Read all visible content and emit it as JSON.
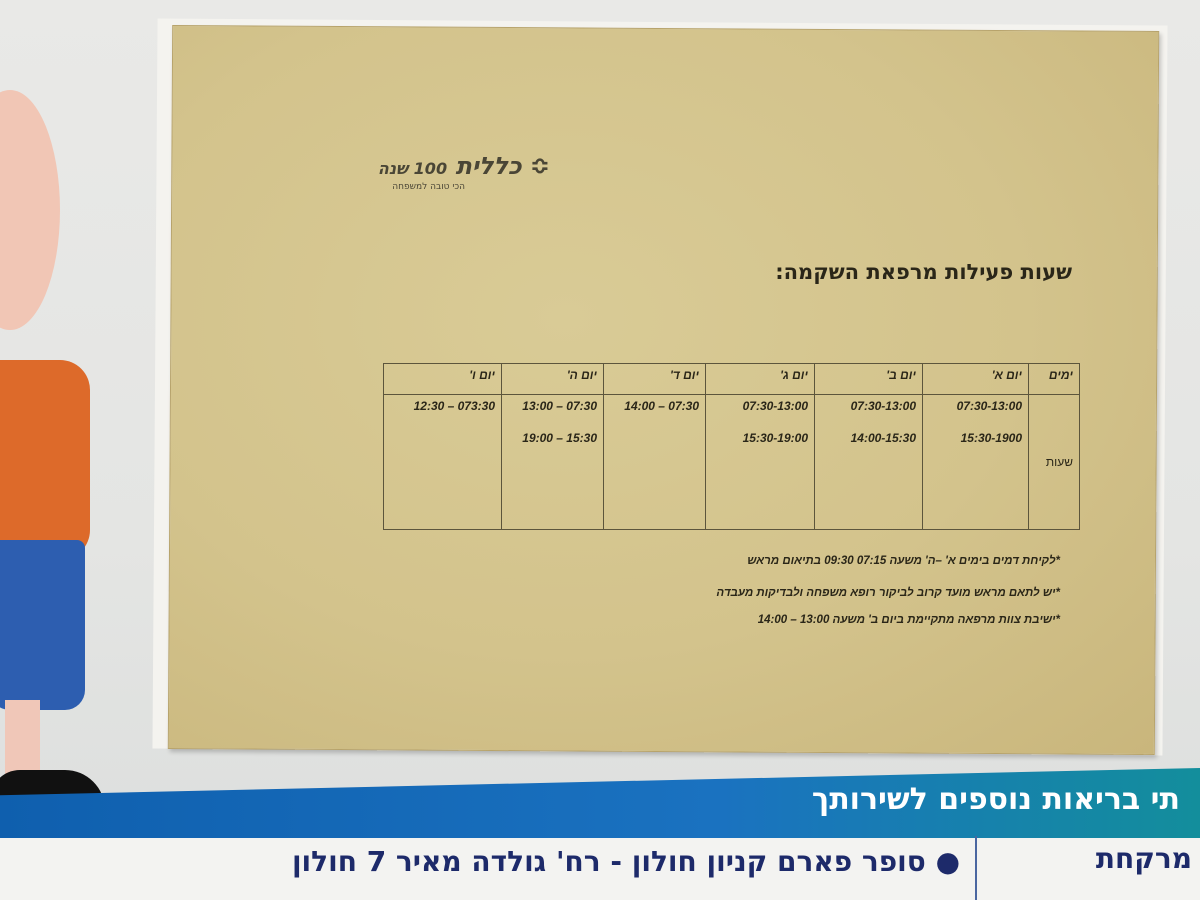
{
  "logo": {
    "brand": "כללית",
    "badge": "100 שנה",
    "tagline": "הכי טובה למשפחה"
  },
  "title": "שעות פעילות מרפאת השקמה:",
  "table": {
    "headers": [
      "ימים",
      "יום א'",
      "יום ב'",
      "יום ג'",
      "יום ד'",
      "יום ה'",
      "יום ו'"
    ],
    "row_label": "שעות",
    "hours": [
      [
        "07:30-13:00",
        "15:30-1900"
      ],
      [
        "07:30-13:00",
        "14:00-15:30"
      ],
      [
        "07:30-13:00",
        "15:30-19:00"
      ],
      [
        "14:00 – 07:30",
        ""
      ],
      [
        "13:00 – 07:30",
        "19:00 – 15:30"
      ],
      [
        "12:30 – 073:30",
        ""
      ]
    ]
  },
  "notes": [
    "*לקיחת דמים בימים א' –ה'  משעה  07:15  09:30    בתיאום מראש",
    "*יש לתאם מראש מועד קרוב לביקור רופא משפחה ולבדיקות מעבדה",
    "*ישיבת צוות מרפאה מתקיימת ביום ב' משעה 13:00 – 14:00"
  ],
  "banner": {
    "text": "תי בריאות נוספים לשירותך",
    "pharmacy": "מרקחת",
    "store": "● סופר פארם קניון חולון - רח' גולדה מאיר 7 חולון"
  },
  "colors": {
    "paper": "#d3c38c",
    "banner": "#1a72c0",
    "banner_text": "#1d2a6a"
  }
}
